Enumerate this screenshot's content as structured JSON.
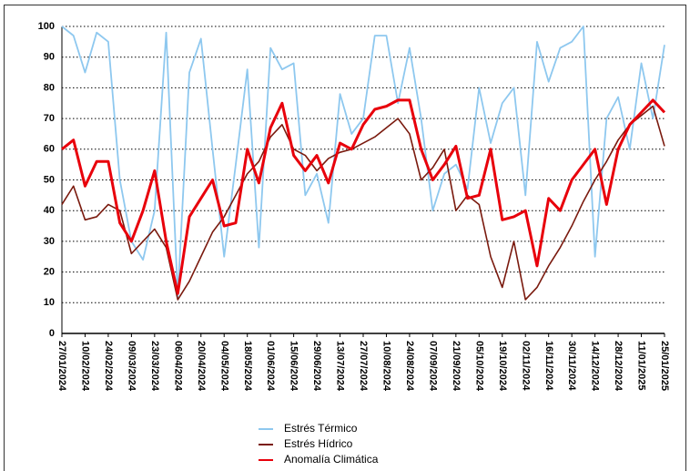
{
  "chart_data": {
    "type": "line",
    "x": [
      "27/01/2024",
      "03/02/2024",
      "10/02/2024",
      "17/02/2024",
      "24/02/2024",
      "02/03/2024",
      "09/03/2024",
      "16/03/2024",
      "23/03/2024",
      "30/03/2024",
      "06/04/2024",
      "13/04/2024",
      "20/04/2024",
      "27/04/2024",
      "04/05/2024",
      "11/05/2024",
      "18/05/2024",
      "25/05/2024",
      "01/06/2024",
      "08/06/2024",
      "15/06/2024",
      "22/06/2024",
      "29/06/2024",
      "06/07/2024",
      "13/07/2024",
      "20/07/2024",
      "27/07/2024",
      "03/08/2024",
      "10/08/2024",
      "17/08/2024",
      "24/08/2024",
      "31/08/2024",
      "07/09/2024",
      "14/09/2024",
      "21/09/2024",
      "28/09/2024",
      "05/10/2024",
      "12/10/2024",
      "19/10/2024",
      "26/10/2024",
      "02/11/2024",
      "09/11/2024",
      "16/11/2024",
      "23/11/2024",
      "30/11/2024",
      "07/12/2024",
      "14/12/2024",
      "21/12/2024",
      "28/12/2024",
      "04/01/2025",
      "11/01/2025",
      "18/01/2025",
      "25/01/2025"
    ],
    "series": [
      {
        "name": "Estrés Térmico",
        "color": "#8ec8ef",
        "values": [
          100,
          97,
          85,
          98,
          95,
          50,
          30,
          24,
          40,
          98,
          12,
          85,
          96,
          60,
          25,
          55,
          86,
          28,
          93,
          86,
          88,
          45,
          52,
          36,
          78,
          65,
          70,
          97,
          97,
          75,
          93,
          70,
          40,
          52,
          55,
          47,
          80,
          62,
          75,
          80,
          45,
          95,
          82,
          93,
          95,
          100,
          25,
          70,
          77,
          60,
          88,
          70,
          94
        ]
      },
      {
        "name": "Estrés Hídrico",
        "color": "#7a1a0e",
        "values": [
          42,
          48,
          37,
          38,
          42,
          40,
          26,
          30,
          34,
          28,
          11,
          17,
          25,
          33,
          38,
          45,
          52,
          56,
          64,
          68,
          60,
          58,
          53,
          57,
          59,
          60,
          62,
          64,
          67,
          70,
          65,
          50,
          54,
          60,
          40,
          45,
          42,
          25,
          15,
          30,
          11,
          15,
          22,
          28,
          35,
          43,
          50,
          56,
          63,
          68,
          71,
          74,
          61
        ]
      },
      {
        "name": "Anomalía Climática",
        "color": "#e8000b",
        "values": [
          60,
          63,
          48,
          56,
          56,
          36,
          30,
          40,
          53,
          30,
          13,
          38,
          44,
          50,
          35,
          36,
          60,
          49,
          67,
          75,
          58,
          53,
          58,
          49,
          62,
          60,
          68,
          73,
          74,
          76,
          76,
          60,
          50,
          55,
          61,
          44,
          45,
          60,
          37,
          38,
          40,
          22,
          44,
          40,
          50,
          55,
          60,
          42,
          60,
          68,
          72,
          76,
          72
        ]
      }
    ],
    "xticks": [
      "27/01/2024",
      "10/02/2024",
      "24/02/2024",
      "09/03/2024",
      "23/03/2024",
      "06/04/2024",
      "20/04/2024",
      "04/05/2024",
      "18/05/2024",
      "01/06/2024",
      "15/06/2024",
      "29/06/2024",
      "13/07/2024",
      "27/07/2024",
      "10/08/2024",
      "24/08/2024",
      "07/09/2024",
      "21/09/2024",
      "05/10/2024",
      "19/10/2024",
      "02/11/2024",
      "16/11/2024",
      "30/11/2024",
      "14/12/2024",
      "28/12/2024",
      "11/01/2025",
      "25/01/2025"
    ],
    "ylim": [
      0,
      100
    ],
    "yticks": [
      0,
      10,
      20,
      30,
      40,
      50,
      60,
      70,
      80,
      90,
      100
    ],
    "grid": true
  }
}
